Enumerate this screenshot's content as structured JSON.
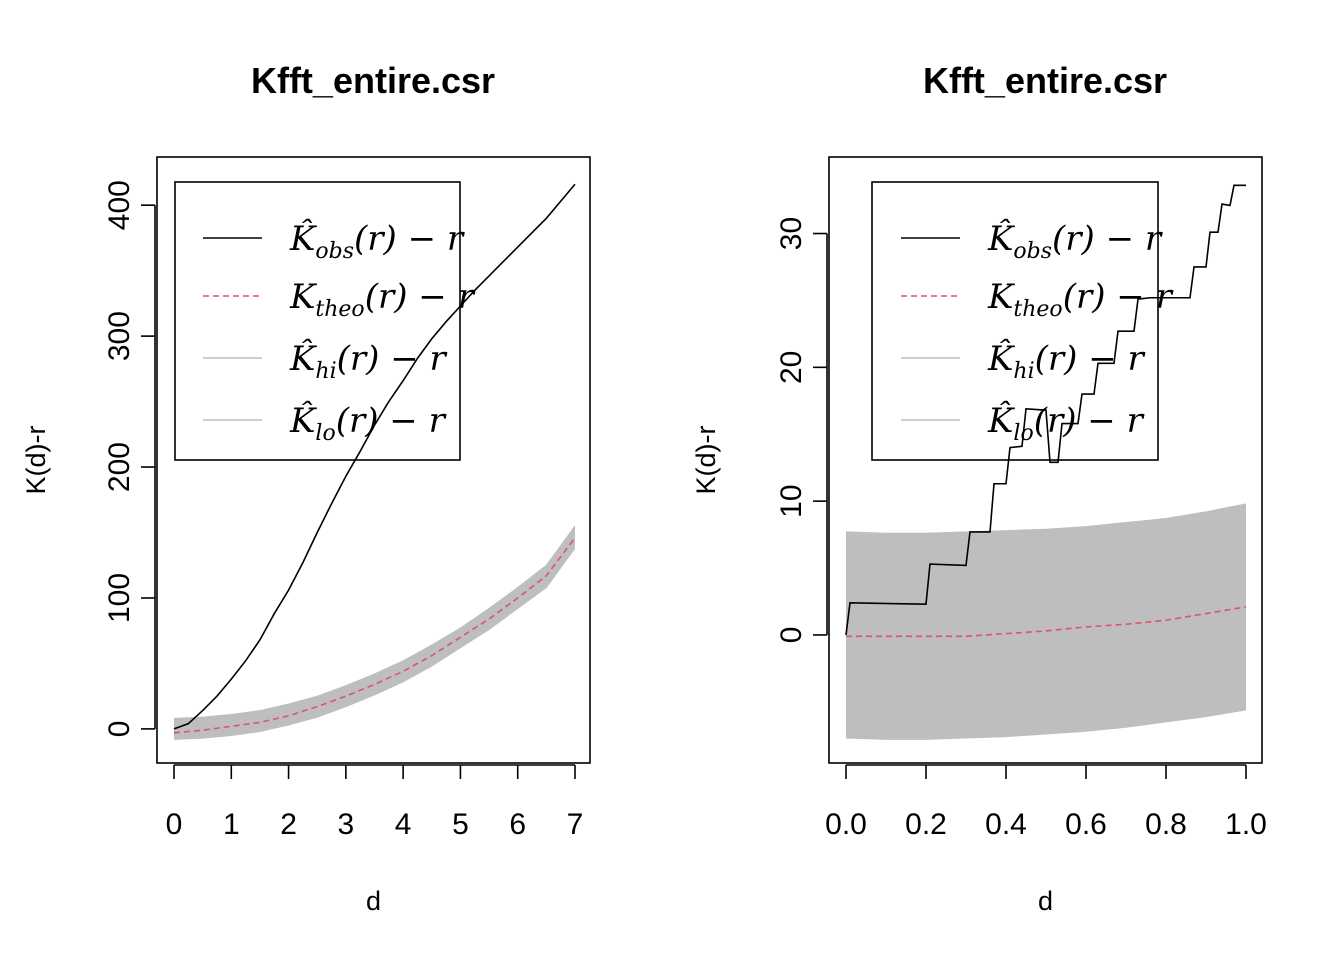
{
  "colors": {
    "obs": "#000000",
    "theo": "#DF536B",
    "envelope": "#BEBEBE",
    "axis": "#000000"
  },
  "chart_data": [
    {
      "type": "line",
      "title": "Kfft_entire.csr",
      "xlabel": "d",
      "ylabel": "K(d)-r",
      "xlim": [
        0,
        7
      ],
      "ylim": [
        -10,
        420
      ],
      "xticks": [
        0,
        1,
        2,
        3,
        4,
        5,
        6,
        7
      ],
      "xtick_labels": [
        "0",
        "1",
        "2",
        "3",
        "4",
        "5",
        "6",
        "7"
      ],
      "yticks": [
        0,
        100,
        200,
        300,
        400
      ],
      "ytick_labels": [
        "0",
        "100",
        "200",
        "300",
        "400"
      ],
      "legend_position": "top-left",
      "legend": [
        {
          "series": "obs",
          "main": "K̂",
          "sub": "obs",
          "tail": "(r) − r"
        },
        {
          "series": "theo",
          "main": "K",
          "sub": "theo",
          "tail": "(r) − r"
        },
        {
          "series": "hi",
          "main": "K̂",
          "sub": "hi",
          "tail": "(r) − r"
        },
        {
          "series": "lo",
          "main": "K̂",
          "sub": "lo",
          "tail": "(r) − r"
        }
      ],
      "series": [
        {
          "key": "obs",
          "x": [
            0,
            0.25,
            0.5,
            0.75,
            1.0,
            1.25,
            1.5,
            1.75,
            2.0,
            2.25,
            2.5,
            2.75,
            3.0,
            3.25,
            3.5,
            3.75,
            4.0,
            4.25,
            4.5,
            4.75,
            5.0,
            5.25,
            5.5,
            5.75,
            6.0,
            6.25,
            6.5,
            6.75,
            7.0
          ],
          "y": [
            0,
            4,
            14,
            25,
            38,
            52,
            68,
            88,
            106,
            127,
            150,
            172,
            193,
            212,
            232,
            250,
            266,
            283,
            298,
            311,
            323,
            335,
            346,
            357,
            368,
            379,
            390,
            403,
            416
          ]
        },
        {
          "key": "theo",
          "x": [
            0,
            0.5,
            1.0,
            1.5,
            2.0,
            2.5,
            3.0,
            3.5,
            4.0,
            4.5,
            5.0,
            5.5,
            6.0,
            6.5,
            7.0
          ],
          "y": [
            -3,
            -1,
            2,
            5,
            10,
            17,
            25,
            34,
            44,
            56,
            70,
            84,
            100,
            117,
            146
          ]
        },
        {
          "key": "hi",
          "x": [
            0,
            0.5,
            1.0,
            1.5,
            2.0,
            2.5,
            3.0,
            3.5,
            4.0,
            4.5,
            5.0,
            5.5,
            6.0,
            6.5,
            7.0
          ],
          "y": [
            8,
            9,
            11,
            14,
            19,
            25,
            33,
            42,
            52,
            64,
            77,
            92,
            108,
            125,
            155
          ]
        },
        {
          "key": "lo",
          "x": [
            0,
            0.5,
            1.0,
            1.5,
            2.0,
            2.5,
            3.0,
            3.5,
            4.0,
            4.5,
            5.0,
            5.5,
            6.0,
            6.5,
            7.0
          ],
          "y": [
            -8,
            -7,
            -5,
            -2,
            3,
            9,
            17,
            26,
            36,
            48,
            62,
            76,
            92,
            108,
            138
          ]
        }
      ]
    },
    {
      "type": "line",
      "title": "Kfft_entire.csr",
      "xlabel": "d",
      "ylabel": "K(d)-r",
      "xlim": [
        0,
        1.0
      ],
      "ylim": [
        -8,
        34
      ],
      "xticks": [
        0,
        0.2,
        0.4,
        0.6,
        0.8,
        1.0
      ],
      "xtick_labels": [
        "0.0",
        "0.2",
        "0.4",
        "0.6",
        "0.8",
        "1.0"
      ],
      "yticks": [
        0,
        10,
        20,
        30
      ],
      "ytick_labels": [
        "0",
        "10",
        "20",
        "30"
      ],
      "legend_position": "top-left",
      "legend": [
        {
          "series": "obs",
          "main": "K̂",
          "sub": "obs",
          "tail": "(r) − r"
        },
        {
          "series": "theo",
          "main": "K",
          "sub": "theo",
          "tail": "(r) − r"
        },
        {
          "series": "hi",
          "main": "K̂",
          "sub": "hi",
          "tail": "(r) − r"
        },
        {
          "series": "lo",
          "main": "K̂",
          "sub": "lo",
          "tail": "(r) − r"
        }
      ],
      "series": [
        {
          "key": "obs",
          "step": true,
          "x": [
            0,
            0.01,
            0.2,
            0.21,
            0.3,
            0.31,
            0.36,
            0.37,
            0.4,
            0.41,
            0.44,
            0.45,
            0.5,
            0.51,
            0.53,
            0.54,
            0.58,
            0.59,
            0.62,
            0.63,
            0.67,
            0.68,
            0.72,
            0.73,
            0.76,
            0.77,
            0.86,
            0.87,
            0.9,
            0.91,
            0.93,
            0.94,
            0.96,
            0.97,
            1.0
          ],
          "y": [
            0,
            2.4,
            2.3,
            5.3,
            5.2,
            7.7,
            7.7,
            11.3,
            11.3,
            14.0,
            14.1,
            16.9,
            16.8,
            12.9,
            12.9,
            15.8,
            15.8,
            18.0,
            18.0,
            20.3,
            20.3,
            22.7,
            22.7,
            25.1,
            25.2,
            25.2,
            25.2,
            27.5,
            27.5,
            30.1,
            30.1,
            32.2,
            32.1,
            33.6,
            33.6
          ]
        },
        {
          "key": "theo",
          "x": [
            0,
            0.1,
            0.2,
            0.3,
            0.4,
            0.5,
            0.6,
            0.7,
            0.8,
            0.9,
            1.0
          ],
          "y": [
            -0.1,
            -0.1,
            -0.1,
            -0.1,
            0.1,
            0.3,
            0.6,
            0.8,
            1.1,
            1.6,
            2.1
          ]
        },
        {
          "key": "hi",
          "x": [
            0,
            0.1,
            0.2,
            0.3,
            0.4,
            0.5,
            0.6,
            0.7,
            0.8,
            0.9,
            1.0
          ],
          "y": [
            7.7,
            7.6,
            7.6,
            7.7,
            7.8,
            7.9,
            8.1,
            8.4,
            8.7,
            9.2,
            9.8
          ]
        },
        {
          "key": "lo",
          "x": [
            0,
            0.1,
            0.2,
            0.3,
            0.4,
            0.5,
            0.6,
            0.7,
            0.8,
            0.9,
            1.0
          ],
          "y": [
            -7.7,
            -7.8,
            -7.8,
            -7.7,
            -7.6,
            -7.4,
            -7.2,
            -6.9,
            -6.5,
            -6.1,
            -5.6
          ]
        }
      ]
    }
  ]
}
